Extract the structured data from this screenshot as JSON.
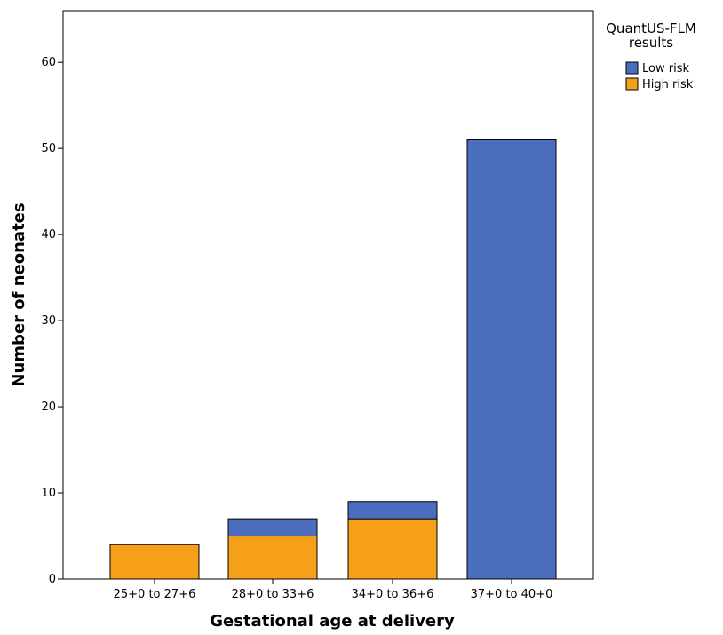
{
  "chart_data": {
    "type": "bar",
    "stacked": true,
    "title": "",
    "xlabel": "Gestational age at delivery",
    "ylabel": "Number of neonates",
    "categories": [
      "25+0 to 27+6",
      "28+0 to 33+6",
      "34+0 to 36+6",
      "37+0 to 40+0"
    ],
    "series": [
      {
        "name": "High risk",
        "values": [
          4,
          5,
          7,
          0
        ],
        "color": "#F6A01A"
      },
      {
        "name": "Low risk",
        "values": [
          0,
          2,
          2,
          51
        ],
        "color": "#4A6DBE"
      }
    ],
    "ylim": [
      0,
      66
    ],
    "yticks": [
      0,
      10,
      20,
      30,
      40,
      50,
      60
    ],
    "grid": false,
    "legend": {
      "title_lines": [
        "QuantUS-FLM",
        "results"
      ],
      "order": [
        "Low risk",
        "High risk"
      ],
      "placement": "right-top"
    }
  }
}
